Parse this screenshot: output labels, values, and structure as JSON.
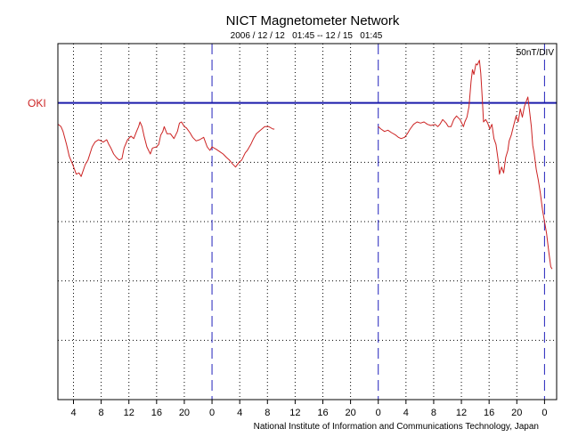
{
  "chart_data": {
    "type": "line",
    "title": "NICT Magnetometer Network",
    "subtitle": "2006 / 12 / 12   01:45 -- 12 / 15   01:45",
    "scale_label": "50nT/DIV",
    "station_label": "OKI",
    "credit": "National Institute of Information and Communications Technology, Japan",
    "x_unit": "hours since 2006-12-12 00:00 UT",
    "xlim": [
      1.75,
      73.75
    ],
    "ylim": [
      -250,
      50
    ],
    "y_units": "nT relative to OKI baseline",
    "x_ticks": [
      {
        "x": 4,
        "label": "4"
      },
      {
        "x": 8,
        "label": "8"
      },
      {
        "x": 12,
        "label": "12"
      },
      {
        "x": 16,
        "label": "16"
      },
      {
        "x": 20,
        "label": "20"
      },
      {
        "x": 24,
        "label": "0"
      },
      {
        "x": 28,
        "label": "4"
      },
      {
        "x": 32,
        "label": "8"
      },
      {
        "x": 36,
        "label": "12"
      },
      {
        "x": 40,
        "label": "16"
      },
      {
        "x": 44,
        "label": "20"
      },
      {
        "x": 48,
        "label": "0"
      },
      {
        "x": 52,
        "label": "4"
      },
      {
        "x": 56,
        "label": "8"
      },
      {
        "x": 60,
        "label": "12"
      },
      {
        "x": 64,
        "label": "16"
      },
      {
        "x": 68,
        "label": "20"
      },
      {
        "x": 72,
        "label": "0"
      }
    ],
    "day_boundaries": [
      24,
      48,
      72
    ],
    "y_gridlines": [
      0,
      -50,
      -100,
      -150,
      -200
    ],
    "grid": true,
    "colors": {
      "data_line": "#cc2222",
      "baseline": "#1a1aaa",
      "day_boundary": "#2222bb",
      "station_label": "#cc2222",
      "grid": "#000000"
    },
    "series": [
      {
        "segments": [
          [
            [
              1.8,
              -18
            ],
            [
              2.2,
              -20
            ],
            [
              2.5,
              -24
            ],
            [
              3.0,
              -35
            ],
            [
              3.4,
              -45
            ],
            [
              3.9,
              -52
            ],
            [
              4.4,
              -60
            ],
            [
              4.8,
              -59
            ],
            [
              5.1,
              -62
            ],
            [
              5.7,
              -52
            ],
            [
              6.1,
              -48
            ],
            [
              6.7,
              -37
            ],
            [
              7.1,
              -33
            ],
            [
              7.6,
              -31
            ],
            [
              8.0,
              -32
            ],
            [
              8.3,
              -33
            ],
            [
              8.8,
              -31
            ],
            [
              9.1,
              -35
            ],
            [
              9.4,
              -38
            ],
            [
              9.8,
              -43
            ],
            [
              10.2,
              -46
            ],
            [
              10.6,
              -48
            ],
            [
              11.0,
              -47
            ],
            [
              11.3,
              -38
            ],
            [
              11.8,
              -31
            ],
            [
              12.3,
              -28
            ],
            [
              12.7,
              -30
            ],
            [
              13.1,
              -24
            ],
            [
              13.4,
              -20
            ],
            [
              13.6,
              -16
            ],
            [
              13.9,
              -20
            ],
            [
              14.2,
              -28
            ],
            [
              14.6,
              -37
            ],
            [
              15.1,
              -43
            ],
            [
              15.4,
              -38
            ],
            [
              16.0,
              -37
            ],
            [
              16.3,
              -35
            ],
            [
              16.6,
              -27
            ],
            [
              16.9,
              -24
            ],
            [
              17.1,
              -20
            ],
            [
              17.5,
              -26
            ],
            [
              18.0,
              -26
            ],
            [
              18.5,
              -30
            ],
            [
              19.0,
              -24
            ],
            [
              19.3,
              -17
            ],
            [
              19.6,
              -16
            ],
            [
              20.0,
              -20
            ],
            [
              20.3,
              -21
            ],
            [
              20.8,
              -25
            ],
            [
              21.2,
              -29
            ],
            [
              21.7,
              -32
            ],
            [
              22.2,
              -31
            ],
            [
              22.8,
              -29
            ],
            [
              23.3,
              -37
            ],
            [
              23.7,
              -40
            ],
            [
              24.0,
              -37
            ],
            [
              24.6,
              -39
            ],
            [
              25.1,
              -41
            ],
            [
              25.6,
              -43
            ],
            [
              26.1,
              -46
            ],
            [
              26.5,
              -48
            ],
            [
              26.9,
              -51
            ],
            [
              27.4,
              -54
            ],
            [
              27.9,
              -50
            ],
            [
              28.3,
              -48
            ],
            [
              28.8,
              -42
            ],
            [
              29.1,
              -40
            ],
            [
              29.6,
              -35
            ],
            [
              30.0,
              -30
            ],
            [
              30.4,
              -26
            ],
            [
              31.0,
              -23
            ],
            [
              31.6,
              -20
            ],
            [
              32.2,
              -20
            ],
            [
              32.8,
              -22
            ],
            [
              33.0,
              -22
            ]
          ],
          [
            [
              48.0,
              -20
            ],
            [
              48.4,
              -22
            ],
            [
              48.9,
              -24
            ],
            [
              49.4,
              -23
            ],
            [
              49.9,
              -25
            ],
            [
              50.5,
              -27
            ],
            [
              50.9,
              -29
            ],
            [
              51.3,
              -30
            ],
            [
              51.8,
              -29
            ],
            [
              52.2,
              -26
            ],
            [
              52.6,
              -22
            ],
            [
              53.1,
              -18
            ],
            [
              53.6,
              -16
            ],
            [
              54.1,
              -17
            ],
            [
              54.6,
              -16
            ],
            [
              55.1,
              -18
            ],
            [
              55.6,
              -19
            ],
            [
              56.2,
              -18
            ],
            [
              56.6,
              -20
            ],
            [
              56.9,
              -18
            ],
            [
              57.3,
              -14
            ],
            [
              57.8,
              -17
            ],
            [
              58.1,
              -20
            ],
            [
              58.5,
              -20
            ],
            [
              58.9,
              -14
            ],
            [
              59.3,
              -11
            ],
            [
              59.8,
              -14
            ],
            [
              60.3,
              -20
            ],
            [
              60.5,
              -16
            ],
            [
              60.8,
              -12
            ],
            [
              61.1,
              -3
            ],
            [
              61.4,
              18
            ],
            [
              61.6,
              28
            ],
            [
              61.8,
              24
            ],
            [
              62.1,
              33
            ],
            [
              62.3,
              32
            ],
            [
              62.6,
              36
            ],
            [
              62.8,
              25
            ],
            [
              63.0,
              5
            ],
            [
              63.2,
              -16
            ],
            [
              63.5,
              -14
            ],
            [
              63.8,
              -17
            ],
            [
              64.1,
              -22
            ],
            [
              64.4,
              -18
            ],
            [
              64.7,
              -30
            ],
            [
              65.0,
              -35
            ],
            [
              65.3,
              -48
            ],
            [
              65.5,
              -60
            ],
            [
              65.8,
              -54
            ],
            [
              66.1,
              -59
            ],
            [
              66.4,
              -46
            ],
            [
              66.7,
              -40
            ],
            [
              66.9,
              -32
            ],
            [
              67.2,
              -27
            ],
            [
              67.5,
              -20
            ],
            [
              67.9,
              -11
            ],
            [
              68.2,
              -16
            ],
            [
              68.5,
              -5
            ],
            [
              68.8,
              -12
            ],
            [
              69.1,
              -3
            ],
            [
              69.4,
              2
            ],
            [
              69.6,
              5
            ],
            [
              69.8,
              -5
            ],
            [
              70.1,
              -20
            ],
            [
              70.3,
              -36
            ],
            [
              70.5,
              -42
            ],
            [
              70.8,
              -56
            ],
            [
              71.1,
              -65
            ],
            [
              71.4,
              -76
            ],
            [
              71.7,
              -90
            ],
            [
              72.0,
              -100
            ],
            [
              72.3,
              -110
            ],
            [
              72.6,
              -125
            ],
            [
              72.9,
              -138
            ],
            [
              73.1,
              -140
            ]
          ]
        ]
      }
    ]
  }
}
